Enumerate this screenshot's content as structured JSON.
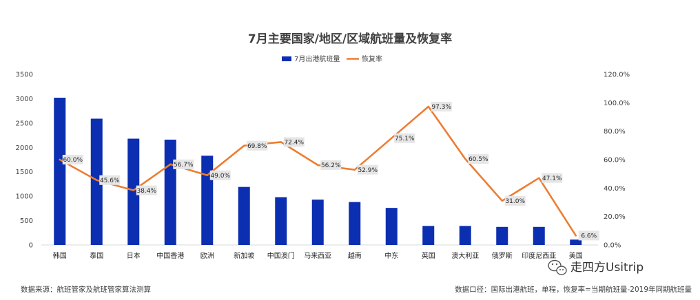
{
  "chart_data": {
    "type": "bar+line",
    "title": "7月主要国家/地区/区域航班量及恢复率",
    "categories": [
      "韩国",
      "泰国",
      "日本",
      "中国香港",
      "欧洲",
      "新加坡",
      "中国澳门",
      "马来西亚",
      "越南",
      "中东",
      "英国",
      "澳大利亚",
      "俄罗斯",
      "印度尼西亚",
      "美国"
    ],
    "series": [
      {
        "name": "7月出港航班量",
        "type": "bar",
        "axis": "left",
        "color": "#0b2fb0",
        "values": [
          3020,
          2590,
          2180,
          2160,
          1830,
          1190,
          980,
          930,
          880,
          760,
          390,
          390,
          370,
          370,
          110
        ]
      },
      {
        "name": "恢复率",
        "type": "line",
        "axis": "right",
        "color": "#ed7d31",
        "values": [
          60.0,
          45.6,
          38.4,
          56.7,
          49.0,
          69.8,
          72.4,
          56.2,
          52.9,
          75.1,
          97.3,
          60.5,
          31.0,
          47.1,
          6.6
        ],
        "labels": [
          "60.0%",
          "45.6%",
          "38.4%",
          "56.7%",
          "49.0%",
          "69.8%",
          "72.4%",
          "56.2%",
          "52.9%",
          "75.1%",
          "97.3%",
          "60.5%",
          "31.0%",
          "47.1%",
          "6.6%"
        ]
      }
    ],
    "y_left": {
      "min": 0,
      "max": 3500,
      "ticks": [
        "0",
        "500",
        "1000",
        "1500",
        "2000",
        "2500",
        "3000",
        "3500"
      ]
    },
    "y_right": {
      "min": 0,
      "max": 120,
      "ticks": [
        "0.0%",
        "20.0%",
        "40.0%",
        "60.0%",
        "80.0%",
        "100.0%",
        "120.0%"
      ]
    },
    "grid": false,
    "legend_position": "top-center"
  },
  "footer": {
    "source": "数据来源：航班管家及航班管家算法测算",
    "note": "数据口径：国际出港航班，单程，恢复率=当期航班量-2019年同期航班量"
  },
  "watermark": {
    "text": "走四方Usitrip",
    "icon": "wechat-icon"
  }
}
